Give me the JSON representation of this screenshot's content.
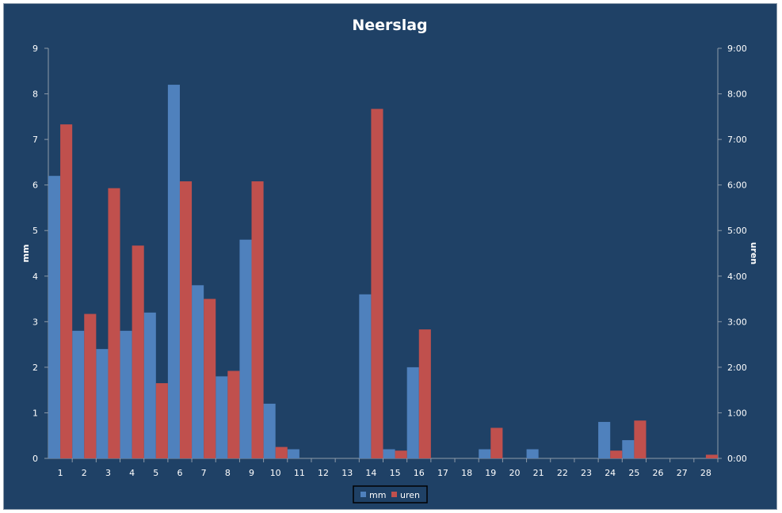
{
  "chart_data": {
    "type": "bar",
    "title": "Neerslag",
    "ylabel": "mm",
    "y2label": "uren",
    "ylim": [
      0,
      9
    ],
    "y2lim": [
      0,
      9
    ],
    "y_ticks": [
      "0",
      "1",
      "2",
      "3",
      "4",
      "5",
      "6",
      "7",
      "8",
      "9"
    ],
    "y2_ticks": [
      "0:00",
      "1:00",
      "2:00",
      "3:00",
      "4:00",
      "5:00",
      "6:00",
      "7:00",
      "8:00",
      "9:00"
    ],
    "categories": [
      "1",
      "2",
      "3",
      "4",
      "5",
      "6",
      "7",
      "8",
      "9",
      "10",
      "11",
      "12",
      "13",
      "14",
      "15",
      "16",
      "17",
      "18",
      "19",
      "20",
      "21",
      "22",
      "23",
      "24",
      "25",
      "26",
      "27",
      "28"
    ],
    "series": [
      {
        "name": "mm",
        "axis": "left",
        "color": "#4f81bd",
        "values": [
          6.2,
          2.8,
          2.4,
          2.8,
          3.2,
          8.2,
          3.8,
          1.8,
          4.8,
          1.2,
          0.2,
          0,
          0,
          3.6,
          0.2,
          2.0,
          0,
          0,
          0.2,
          0,
          0.2,
          0,
          0,
          0.8,
          0.4,
          0,
          0,
          0
        ]
      },
      {
        "name": "uren",
        "axis": "right",
        "color": "#c0504d",
        "values": [
          7.33,
          3.17,
          5.93,
          4.67,
          1.65,
          6.08,
          3.5,
          1.92,
          6.08,
          0.25,
          0,
          0,
          0,
          7.67,
          0.17,
          2.83,
          0,
          0,
          0.67,
          0,
          0,
          0,
          0,
          0.17,
          0.83,
          0,
          0,
          0.08
        ]
      }
    ],
    "legend_position": "bottom",
    "grid": false
  }
}
